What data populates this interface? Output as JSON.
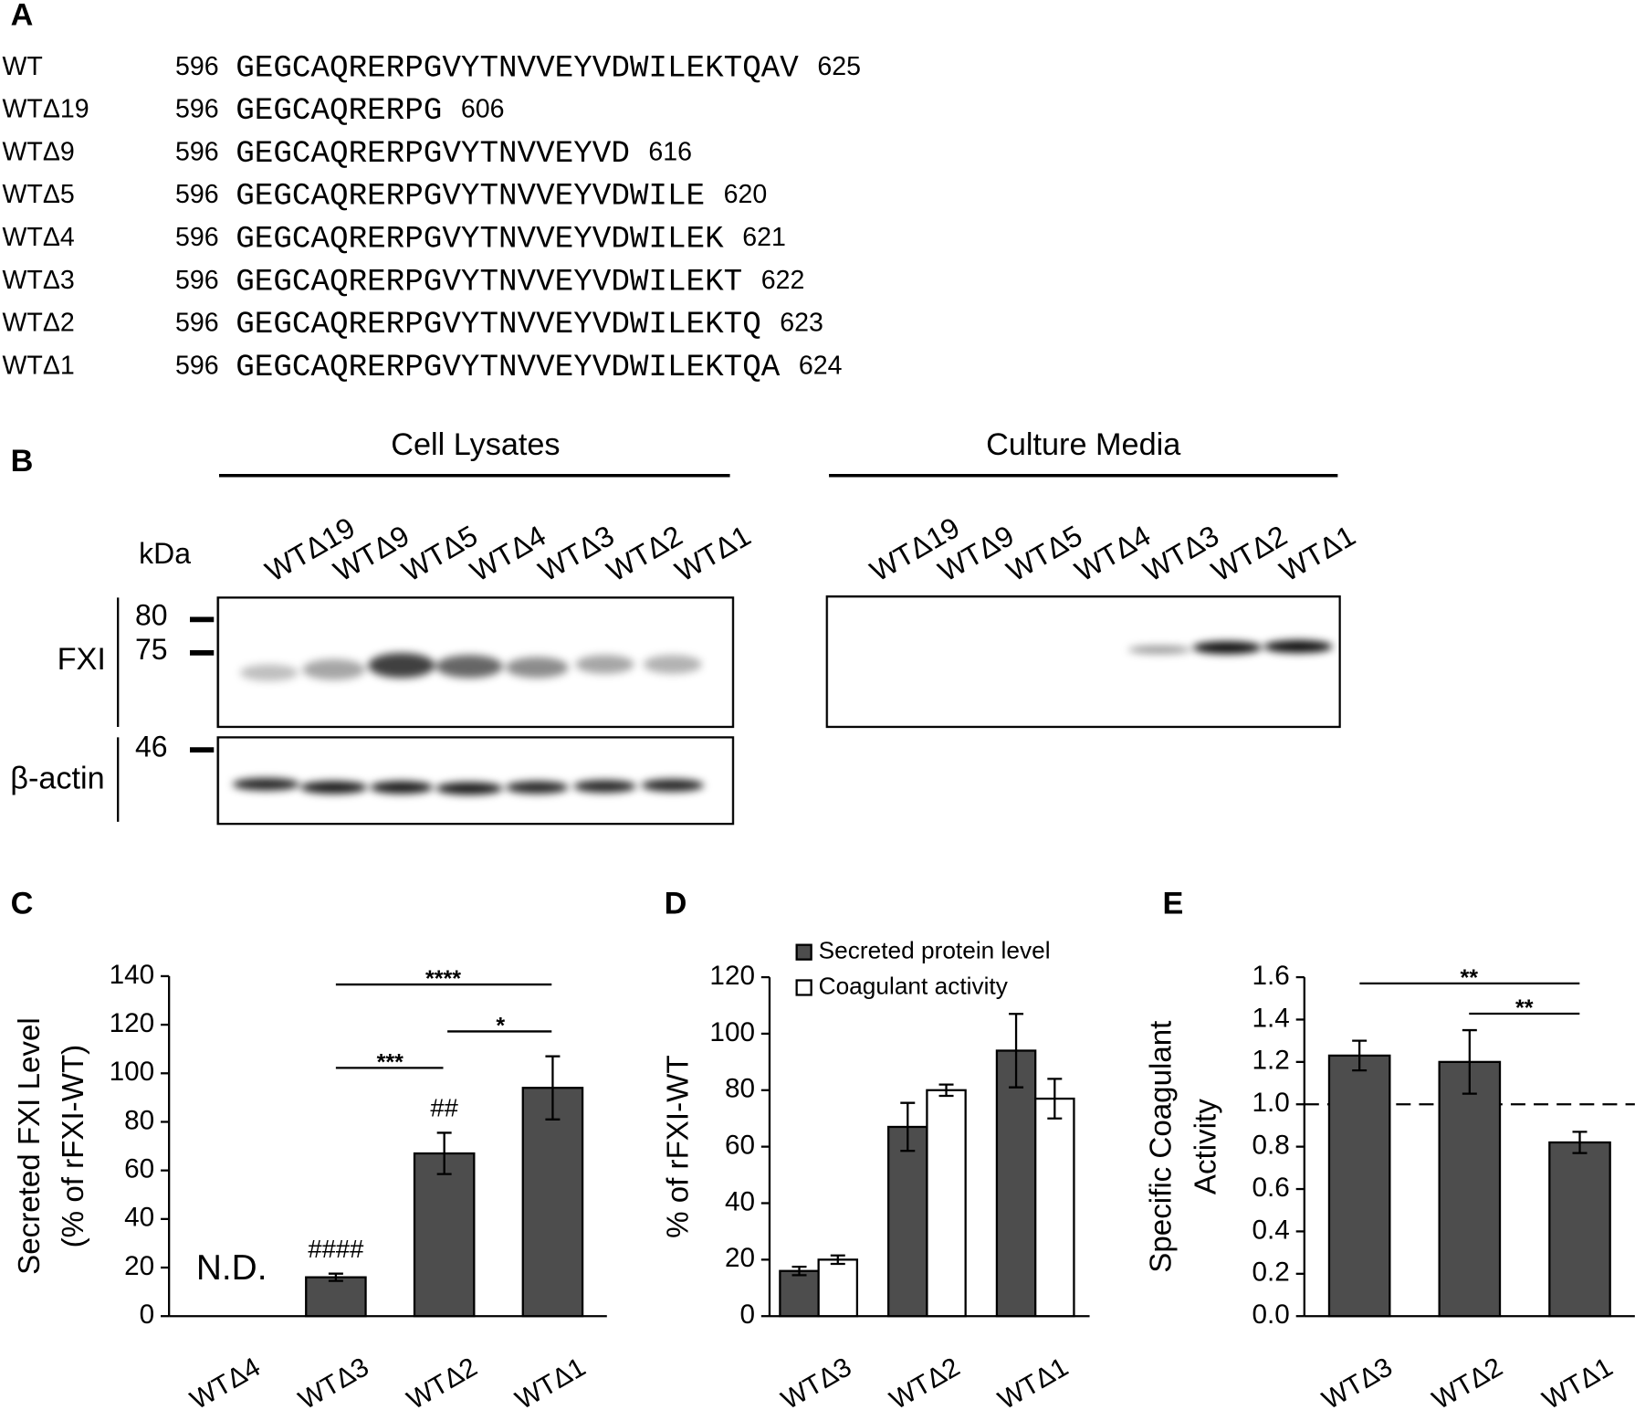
{
  "panel_labels": [
    "A",
    "B",
    "C",
    "D",
    "E"
  ],
  "panel_a": {
    "rows": [
      {
        "name": "WT",
        "start": 596,
        "sequence": "GEGCAQRERPGVYTNVVEYVDWILEKTQAV",
        "end": 625
      },
      {
        "name": "WTΔ19",
        "start": 596,
        "sequence": "GEGCAQRERPG",
        "end": 606
      },
      {
        "name": "WTΔ9",
        "start": 596,
        "sequence": "GEGCAQRERPGVYTNVVEYVD",
        "end": 616
      },
      {
        "name": "WTΔ5",
        "start": 596,
        "sequence": "GEGCAQRERPGVYTNVVEYVDWILE",
        "end": 620
      },
      {
        "name": "WTΔ4",
        "start": 596,
        "sequence": "GEGCAQRERPGVYTNVVEYVDWILEK",
        "end": 621
      },
      {
        "name": "WTΔ3",
        "start": 596,
        "sequence": "GEGCAQRERPGVYTNVVEYVDWILEKT",
        "end": 622
      },
      {
        "name": "WTΔ2",
        "start": 596,
        "sequence": "GEGCAQRERPGVYTNVVEYVDWILEKTQ",
        "end": 623
      },
      {
        "name": "WTΔ1",
        "start": 596,
        "sequence": "GEGCAQRERPGVYTNVVEYVDWILEKTQA",
        "end": 624
      }
    ]
  },
  "panel_b": {
    "groups": [
      "Cell Lysates",
      "Culture Media"
    ],
    "lanes": [
      "WTΔ19",
      "WTΔ9",
      "WTΔ5",
      "WTΔ4",
      "WTΔ3",
      "WTΔ2",
      "WTΔ1"
    ],
    "kda_label": "kDa",
    "markers": [
      80,
      75,
      46
    ],
    "blots": [
      "FXI",
      "β-actin"
    ]
  },
  "chart_data": [
    {
      "type": "bar",
      "ylabel": [
        "Secreted FXI Level",
        "(% of rFXI-WT)"
      ],
      "categories": [
        "WTΔ4",
        "WTΔ3",
        "WTΔ2",
        "WTΔ1"
      ],
      "values": [
        null,
        16,
        67,
        94
      ],
      "errors": [
        null,
        1.5,
        8.5,
        13
      ],
      "value_notes": [
        "N.D.",
        "####",
        "##",
        null
      ],
      "color": "#4d4d4d",
      "ylim": [
        0,
        140
      ],
      "yticks": [
        0,
        20,
        40,
        60,
        80,
        100,
        120,
        140
      ],
      "significance": [
        "****",
        "***",
        "*"
      ]
    },
    {
      "type": "bar",
      "ylabel": [
        "% of rFXI-WT"
      ],
      "categories": [
        "WTΔ3",
        "WTΔ2",
        "WTΔ1"
      ],
      "series": [
        {
          "name": "Secreted protein level",
          "color": "#4d4d4d",
          "values": [
            16,
            67,
            94
          ],
          "errors": [
            1.5,
            8.5,
            13
          ]
        },
        {
          "name": "Coagulant activity",
          "color": "#ffffff",
          "values": [
            20,
            80,
            77
          ],
          "errors": [
            1.5,
            2,
            7
          ]
        }
      ],
      "legend": "upper left",
      "ylim": [
        0,
        120
      ],
      "yticks": [
        0,
        20,
        40,
        60,
        80,
        100,
        120
      ]
    },
    {
      "type": "bar",
      "ylabel": [
        "Specific Coagulant",
        "Activity"
      ],
      "categories": [
        "WTΔ3",
        "WTΔ2",
        "WTΔ1"
      ],
      "values": [
        1.23,
        1.2,
        0.82
      ],
      "errors": [
        0.07,
        0.15,
        0.05
      ],
      "color": "#4d4d4d",
      "ylim": [
        0,
        1.6
      ],
      "yticks": [
        {
          "value": 0,
          "label": "0.0"
        },
        0.2,
        0.4,
        0.6,
        0.8,
        {
          "value": 1,
          "label": "1.0"
        },
        1.2,
        1.4,
        1.6
      ],
      "hline": 1,
      "significance": [
        "**",
        "**"
      ]
    }
  ]
}
